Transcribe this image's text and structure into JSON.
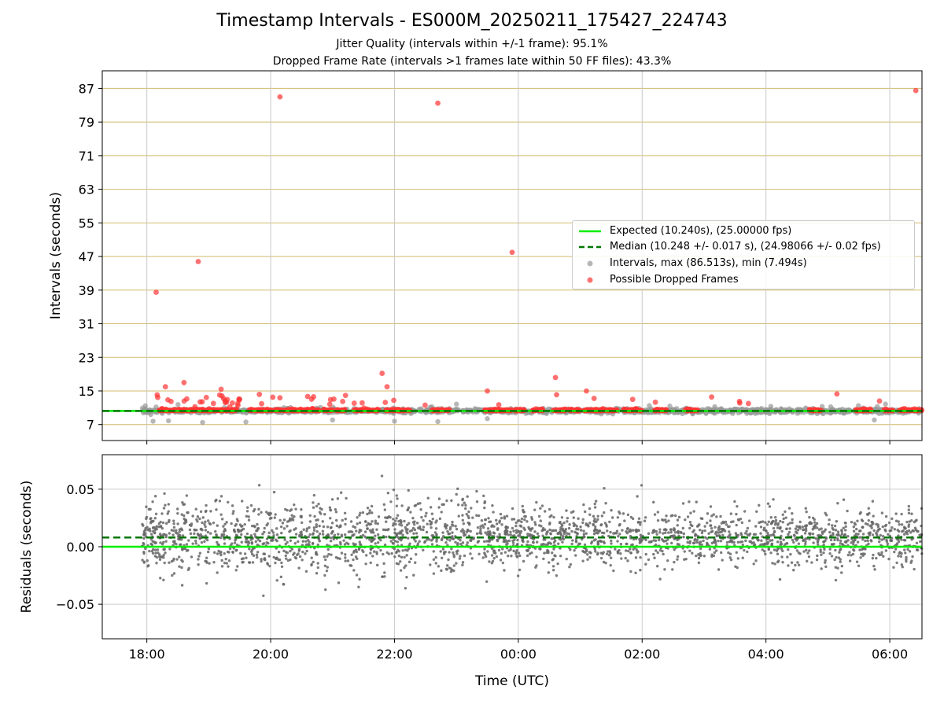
{
  "figure": {
    "title": "Timestamp Intervals - ES000M_20250211_175427_224743",
    "subtitle_jitter": "Jitter Quality (intervals within +/-1 frame): 95.1%",
    "subtitle_dropped": "Dropped Frame Rate (intervals >1 frames late within 50 FF files): 43.3%"
  },
  "colors": {
    "expected": "#00ee00",
    "median": "#007700",
    "intervals": "#999999",
    "dropped": "#ff3333",
    "residuals": "#666666",
    "grid_upper": "#d2bb6e",
    "grid_lower": "#cccccc"
  },
  "chart_data": [
    {
      "type": "scatter",
      "panel": "intervals",
      "xlabel": "",
      "ylabel": "Intervals (seconds)",
      "x_unit": "hours since 18:00 UTC",
      "xlim": [
        -0.72,
        12.52
      ],
      "ylim": [
        3.2,
        91.2
      ],
      "yticks": [
        7,
        15,
        23,
        31,
        39,
        47,
        55,
        63,
        71,
        79,
        87
      ],
      "xticks": [
        0,
        2,
        4,
        6,
        8,
        10,
        12
      ],
      "xtick_labels": [
        "18:00",
        "20:00",
        "22:00",
        "00:00",
        "02:00",
        "04:00",
        "06:00"
      ],
      "grid": true,
      "legend_position": "center-right",
      "legend": [
        "Expected (10.240s), (25.00000 fps)",
        "Median (10.248 +/- 0.017 s), (24.98066 +/- 0.02 fps)",
        "Intervals, max (86.513s), min (7.494s)",
        "Possible Dropped Frames"
      ],
      "expected": 10.24,
      "median": 10.248,
      "intervals_range": [
        -0.08,
        12.52
      ],
      "dropped_outliers": [
        {
          "x": 0.15,
          "y": 38.5
        },
        {
          "x": 2.15,
          "y": 85.0
        },
        {
          "x": 4.7,
          "y": 83.5
        },
        {
          "x": 5.9,
          "y": 48.0
        },
        {
          "x": 12.42,
          "y": 86.5
        },
        {
          "x": 0.83,
          "y": 45.8
        },
        {
          "x": 0.6,
          "y": 17.0
        },
        {
          "x": 3.8,
          "y": 19.2
        },
        {
          "x": 3.88,
          "y": 16.0
        },
        {
          "x": 6.6,
          "y": 18.2
        },
        {
          "x": 0.3,
          "y": 16.0
        },
        {
          "x": 5.5,
          "y": 15.0
        },
        {
          "x": 1.2,
          "y": 15.4
        },
        {
          "x": 7.1,
          "y": 15.0
        }
      ],
      "sparse_markers": [
        {
          "x": 0.1,
          "y": 7.8
        },
        {
          "x": 0.35,
          "y": 7.9
        },
        {
          "x": 0.9,
          "y": 7.5
        },
        {
          "x": 1.6,
          "y": 7.6
        },
        {
          "x": 3.0,
          "y": 8.1
        },
        {
          "x": 4.0,
          "y": 7.8
        },
        {
          "x": 4.7,
          "y": 7.7
        },
        {
          "x": 5.5,
          "y": 8.4
        },
        {
          "x": 11.75,
          "y": 8.1
        }
      ]
    },
    {
      "type": "scatter",
      "panel": "residuals",
      "xlabel": "Time (UTC)",
      "ylabel": "Residuals (seconds)",
      "x_unit": "hours since 18:00 UTC",
      "xlim": [
        -0.72,
        12.52
      ],
      "ylim": [
        -0.08,
        0.08
      ],
      "yticks": [
        -0.05,
        0.0,
        0.05
      ],
      "ytick_labels": [
        "−0.05",
        "0.00",
        "0.05"
      ],
      "xticks": [
        0,
        2,
        4,
        6,
        8,
        10,
        12
      ],
      "xtick_labels": [
        "18:00",
        "20:00",
        "22:00",
        "00:00",
        "02:00",
        "04:00",
        "06:00"
      ],
      "grid": true,
      "expected": 0.0,
      "median": 0.008,
      "residual_range": [
        -0.08,
        12.52
      ],
      "residual_center": 0.008,
      "residual_spread": 0.012
    }
  ]
}
